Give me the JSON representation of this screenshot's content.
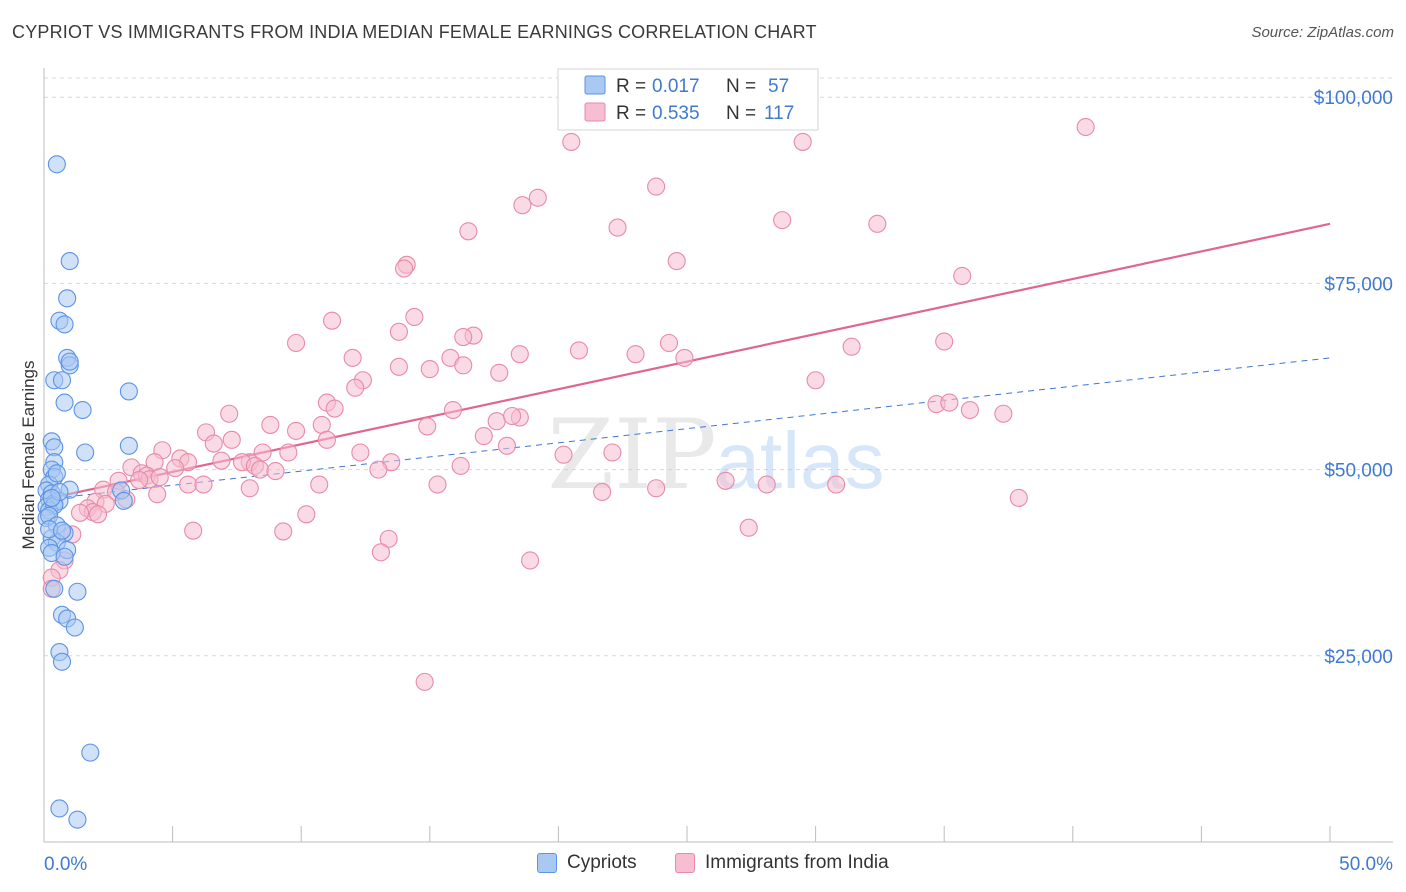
{
  "title": "CYPRIOT VS IMMIGRANTS FROM INDIA MEDIAN FEMALE EARNINGS CORRELATION CHART",
  "source": "Source: ZipAtlas.com",
  "watermark": {
    "zip": "ZIP",
    "atlas": "atlas"
  },
  "colors": {
    "blue": "#5b93e6",
    "blue_fill": "#a9c8f2",
    "blue_line": "#3e79d4",
    "pink": "#e88aa8",
    "pink_fill": "#f6bed0",
    "pink_line": "#e0668e",
    "axis_text": "#3f7ad0",
    "grid": "#d8d8d8"
  },
  "legend_top": {
    "rows": [
      {
        "series": "Cypriots",
        "r_label": "R =",
        "r_value": "0.017",
        "n_label": "N =",
        "n_value": "57"
      },
      {
        "series": "Immigrants from India",
        "r_label": "R =",
        "r_value": "0.535",
        "n_label": "N =",
        "n_value": "117"
      }
    ]
  },
  "legend_bottom": [
    "Cypriots",
    "Immigrants from India"
  ],
  "chart_data": {
    "type": "scatter",
    "title": "CYPRIOT VS IMMIGRANTS FROM INDIA MEDIAN FEMALE EARNINGS CORRELATION CHART",
    "xlabel": "",
    "ylabel": "Median Female Earnings",
    "xlim": [
      0,
      50
    ],
    "ylim": [
      0,
      105000
    ],
    "x_tick_labels": [
      "0.0%",
      "50.0%"
    ],
    "y_ticks": [
      25000,
      50000,
      75000,
      100000
    ],
    "y_tick_labels": [
      "$25,000",
      "$50,000",
      "$75,000",
      "$100,000"
    ],
    "grid": true,
    "legend_position": "top-center",
    "series": [
      {
        "name": "Cypriots",
        "r": 0.017,
        "n": 57,
        "trend": {
          "x": [
            0,
            50
          ],
          "y": [
            46000,
            65000
          ],
          "style": "dashed"
        },
        "points": [
          [
            0.5,
            91000
          ],
          [
            1.0,
            78000
          ],
          [
            0.9,
            73000
          ],
          [
            0.6,
            70000
          ],
          [
            0.8,
            69500
          ],
          [
            0.9,
            65000
          ],
          [
            1.0,
            64000
          ],
          [
            0.4,
            62000
          ],
          [
            0.7,
            62000
          ],
          [
            3.3,
            60500
          ],
          [
            0.8,
            59000
          ],
          [
            1.5,
            58000
          ],
          [
            0.3,
            53800
          ],
          [
            0.4,
            53000
          ],
          [
            3.3,
            53200
          ],
          [
            1.6,
            52300
          ],
          [
            0.4,
            51000
          ],
          [
            0.3,
            50000
          ],
          [
            0.4,
            49000
          ],
          [
            0.2,
            48000
          ],
          [
            0.1,
            47200
          ],
          [
            0.3,
            46800
          ],
          [
            1.0,
            47300
          ],
          [
            0.2,
            46000
          ],
          [
            0.4,
            45500
          ],
          [
            0.6,
            45800
          ],
          [
            3.0,
            47200
          ],
          [
            0.1,
            45000
          ],
          [
            0.2,
            44500
          ],
          [
            0.4,
            45200
          ],
          [
            0.1,
            43500
          ],
          [
            0.2,
            43800
          ],
          [
            0.5,
            42500
          ],
          [
            0.8,
            41500
          ],
          [
            0.3,
            40800
          ],
          [
            0.5,
            40200
          ],
          [
            0.2,
            39500
          ],
          [
            0.9,
            39200
          ],
          [
            0.3,
            38800
          ],
          [
            0.8,
            38300
          ],
          [
            3.1,
            45800
          ],
          [
            0.4,
            34000
          ],
          [
            1.3,
            33600
          ],
          [
            0.7,
            30500
          ],
          [
            0.9,
            30000
          ],
          [
            1.2,
            28800
          ],
          [
            0.6,
            25500
          ],
          [
            0.7,
            24200
          ],
          [
            1.8,
            12000
          ],
          [
            0.6,
            4500
          ],
          [
            1.3,
            3000
          ],
          [
            0.2,
            42000
          ],
          [
            0.6,
            47000
          ],
          [
            1.0,
            64500
          ],
          [
            0.5,
            49500
          ],
          [
            0.3,
            46200
          ],
          [
            0.7,
            41800
          ]
        ]
      },
      {
        "name": "Immigrants from India",
        "r": 0.535,
        "n": 117,
        "trend": {
          "x": [
            0,
            50
          ],
          "y": [
            46000,
            83000
          ],
          "style": "solid"
        },
        "points": [
          [
            40.5,
            96000
          ],
          [
            20.5,
            94000
          ],
          [
            29.5,
            94000
          ],
          [
            23.8,
            88000
          ],
          [
            19.2,
            86500
          ],
          [
            18.6,
            85500
          ],
          [
            22.3,
            82500
          ],
          [
            28.7,
            83500
          ],
          [
            32.4,
            83000
          ],
          [
            16.5,
            82000
          ],
          [
            24.6,
            78000
          ],
          [
            14.1,
            77500
          ],
          [
            14.0,
            77000
          ],
          [
            35.7,
            76000
          ],
          [
            14.4,
            70500
          ],
          [
            11.2,
            70000
          ],
          [
            13.8,
            68500
          ],
          [
            16.7,
            68000
          ],
          [
            16.3,
            67800
          ],
          [
            9.8,
            67000
          ],
          [
            24.3,
            67000
          ],
          [
            31.4,
            66500
          ],
          [
            35.0,
            67200
          ],
          [
            20.8,
            66000
          ],
          [
            18.5,
            65500
          ],
          [
            15.8,
            65000
          ],
          [
            23.0,
            65500
          ],
          [
            24.9,
            65000
          ],
          [
            12.0,
            65000
          ],
          [
            16.3,
            64000
          ],
          [
            13.8,
            63800
          ],
          [
            15.0,
            63500
          ],
          [
            17.7,
            63000
          ],
          [
            12.4,
            62000
          ],
          [
            12.1,
            61000
          ],
          [
            30.0,
            62000
          ],
          [
            11.0,
            59000
          ],
          [
            34.7,
            58800
          ],
          [
            35.2,
            59000
          ],
          [
            36.0,
            58000
          ],
          [
            37.3,
            57500
          ],
          [
            11.3,
            58200
          ],
          [
            15.9,
            58000
          ],
          [
            7.2,
            57500
          ],
          [
            17.6,
            56500
          ],
          [
            18.5,
            57000
          ],
          [
            18.2,
            57200
          ],
          [
            8.8,
            56000
          ],
          [
            10.8,
            56000
          ],
          [
            14.9,
            55800
          ],
          [
            6.3,
            55000
          ],
          [
            9.8,
            55200
          ],
          [
            17.1,
            54500
          ],
          [
            7.3,
            54000
          ],
          [
            11.0,
            54000
          ],
          [
            6.6,
            53500
          ],
          [
            18.0,
            53200
          ],
          [
            4.6,
            52600
          ],
          [
            8.5,
            52300
          ],
          [
            9.5,
            52300
          ],
          [
            12.3,
            52300
          ],
          [
            22.1,
            52300
          ],
          [
            20.2,
            52000
          ],
          [
            5.3,
            51500
          ],
          [
            4.3,
            51000
          ],
          [
            5.6,
            51000
          ],
          [
            8.0,
            51000
          ],
          [
            13.5,
            51000
          ],
          [
            6.9,
            51200
          ],
          [
            7.7,
            51000
          ],
          [
            8.2,
            50500
          ],
          [
            3.4,
            50300
          ],
          [
            5.1,
            50200
          ],
          [
            8.4,
            50000
          ],
          [
            13.0,
            50000
          ],
          [
            16.2,
            50500
          ],
          [
            3.8,
            49500
          ],
          [
            4.0,
            49200
          ],
          [
            9.0,
            49800
          ],
          [
            4.1,
            48700
          ],
          [
            2.9,
            48500
          ],
          [
            3.7,
            48600
          ],
          [
            4.5,
            49000
          ],
          [
            15.3,
            48000
          ],
          [
            10.7,
            48000
          ],
          [
            5.6,
            48000
          ],
          [
            6.2,
            48000
          ],
          [
            8.0,
            47500
          ],
          [
            21.7,
            47000
          ],
          [
            23.8,
            47500
          ],
          [
            26.5,
            48500
          ],
          [
            2.3,
            47300
          ],
          [
            2.8,
            47000
          ],
          [
            4.4,
            46700
          ],
          [
            3.2,
            46000
          ],
          [
            2.0,
            45700
          ],
          [
            2.4,
            45400
          ],
          [
            37.9,
            46200
          ],
          [
            1.7,
            44800
          ],
          [
            1.9,
            44300
          ],
          [
            1.4,
            44200
          ],
          [
            2.1,
            44000
          ],
          [
            10.2,
            44000
          ],
          [
            5.8,
            41800
          ],
          [
            9.3,
            41700
          ],
          [
            27.4,
            42200
          ],
          [
            1.1,
            41300
          ],
          [
            13.4,
            40700
          ],
          [
            13.1,
            38900
          ],
          [
            18.9,
            37800
          ],
          [
            0.8,
            37800
          ],
          [
            0.6,
            36500
          ],
          [
            0.3,
            35500
          ],
          [
            0.3,
            34000
          ],
          [
            14.8,
            21500
          ],
          [
            28.1,
            48000
          ],
          [
            30.8,
            48000
          ]
        ]
      }
    ]
  }
}
